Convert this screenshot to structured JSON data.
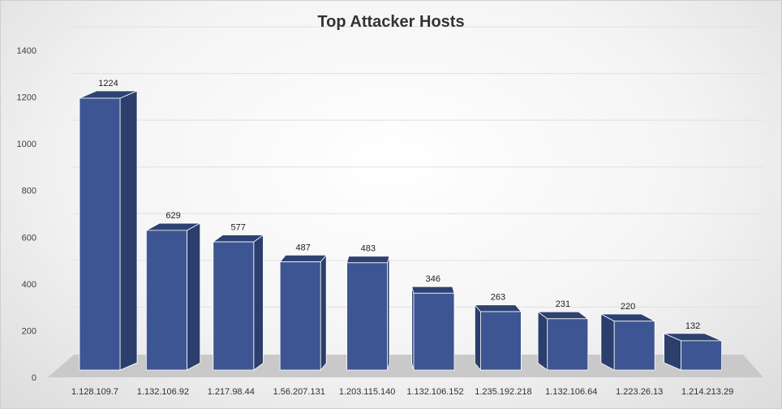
{
  "chart_data": {
    "type": "bar",
    "style": "3d-column",
    "title": "Top Attacker Hosts",
    "xlabel": "",
    "ylabel": "",
    "categories": [
      "1.128.109.7",
      "1.132.106.92",
      "1.217.98.44",
      "1.56.207.131",
      "1.203.115.140",
      "1.132.106.152",
      "1.235.192.218",
      "1.132.106.64",
      "1.223.26.13",
      "1.214.213.29"
    ],
    "values": [
      1224,
      629,
      577,
      487,
      483,
      346,
      263,
      231,
      220,
      132
    ],
    "ylim": [
      0,
      1400
    ],
    "yticks": [
      0,
      200,
      400,
      600,
      800,
      1000,
      1200,
      1400
    ],
    "grid": true,
    "legend": "none",
    "colors": {
      "bar_front": "#3d5592",
      "bar_side": "#2b3e6c",
      "bar_top": "#2e4272",
      "floor": "#c9c9c9",
      "gridline": "#e0e0e0"
    }
  }
}
